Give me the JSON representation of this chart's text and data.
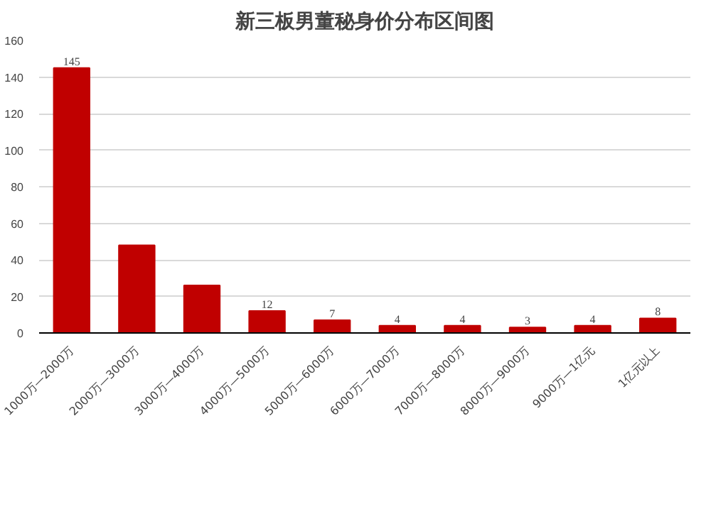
{
  "chart_data": {
    "type": "bar",
    "title": "新三板男董秘身价分布区间图",
    "categories": [
      "1000万—2000万",
      "2000万—3000万",
      "3000万—4000万",
      "4000万—5000万",
      "5000万—6000万",
      "6000万—7000万",
      "7000万—8000万",
      "8000万—9000万",
      "9000万—1亿元",
      "1亿元以上"
    ],
    "values": [
      145,
      48,
      26,
      12,
      7,
      4,
      4,
      3,
      4,
      8
    ],
    "value_labels": [
      "145",
      null,
      null,
      "12",
      "7",
      "4",
      "4",
      "3",
      "4",
      "8"
    ],
    "color": "#c00000",
    "ylim": [
      0,
      160
    ],
    "yticks": [
      0,
      20,
      40,
      60,
      80,
      100,
      120,
      140,
      160
    ],
    "grid": "y"
  }
}
